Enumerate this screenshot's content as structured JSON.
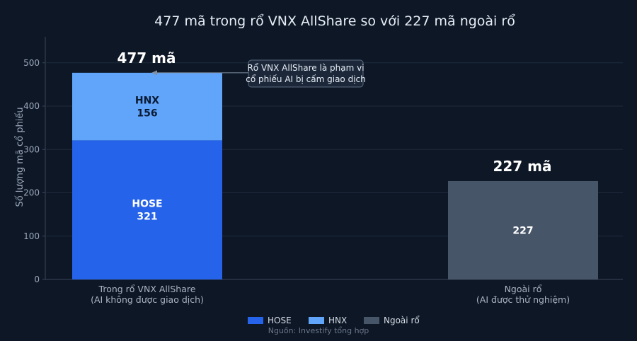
{
  "chart_data": {
    "type": "bar",
    "stacked": true,
    "title": "477 mã trong rổ VNX AllShare so với 227 mã ngoài rổ",
    "ylabel": "Số lượng mã cổ phiếu",
    "xlabel": "",
    "ylim": [
      0,
      560
    ],
    "yticks": [
      0,
      100,
      200,
      300,
      400,
      500
    ],
    "grid": true,
    "categories": [
      {
        "line1": "Trong rổ VNX AllShare",
        "line2": "(AI không được giao dịch)"
      },
      {
        "line1": "Ngoài rổ",
        "line2": "(AI được thử nghiệm)"
      }
    ],
    "series": [
      {
        "name": "HOSE",
        "color": "#2563eb",
        "values": [
          321,
          0
        ],
        "labels": [
          "HOSE",
          ""
        ]
      },
      {
        "name": "HNX",
        "color": "#60a5fa",
        "values": [
          156,
          0
        ],
        "labels": [
          "HNX",
          ""
        ]
      },
      {
        "name": "Ngoài rổ",
        "color": "#475569",
        "values": [
          0,
          227
        ],
        "labels": [
          "",
          ""
        ]
      }
    ],
    "totals": [
      "477 mã",
      "227 mã"
    ],
    "annotation": {
      "line1": "Rổ VNX AllShare là phạm vi",
      "line2": "cổ phiếu AI bị cấm giao dịch",
      "points_to_value": 477
    },
    "legend_placement": "bottom-center",
    "source": "Nguồn: Investify tổng hợp"
  }
}
